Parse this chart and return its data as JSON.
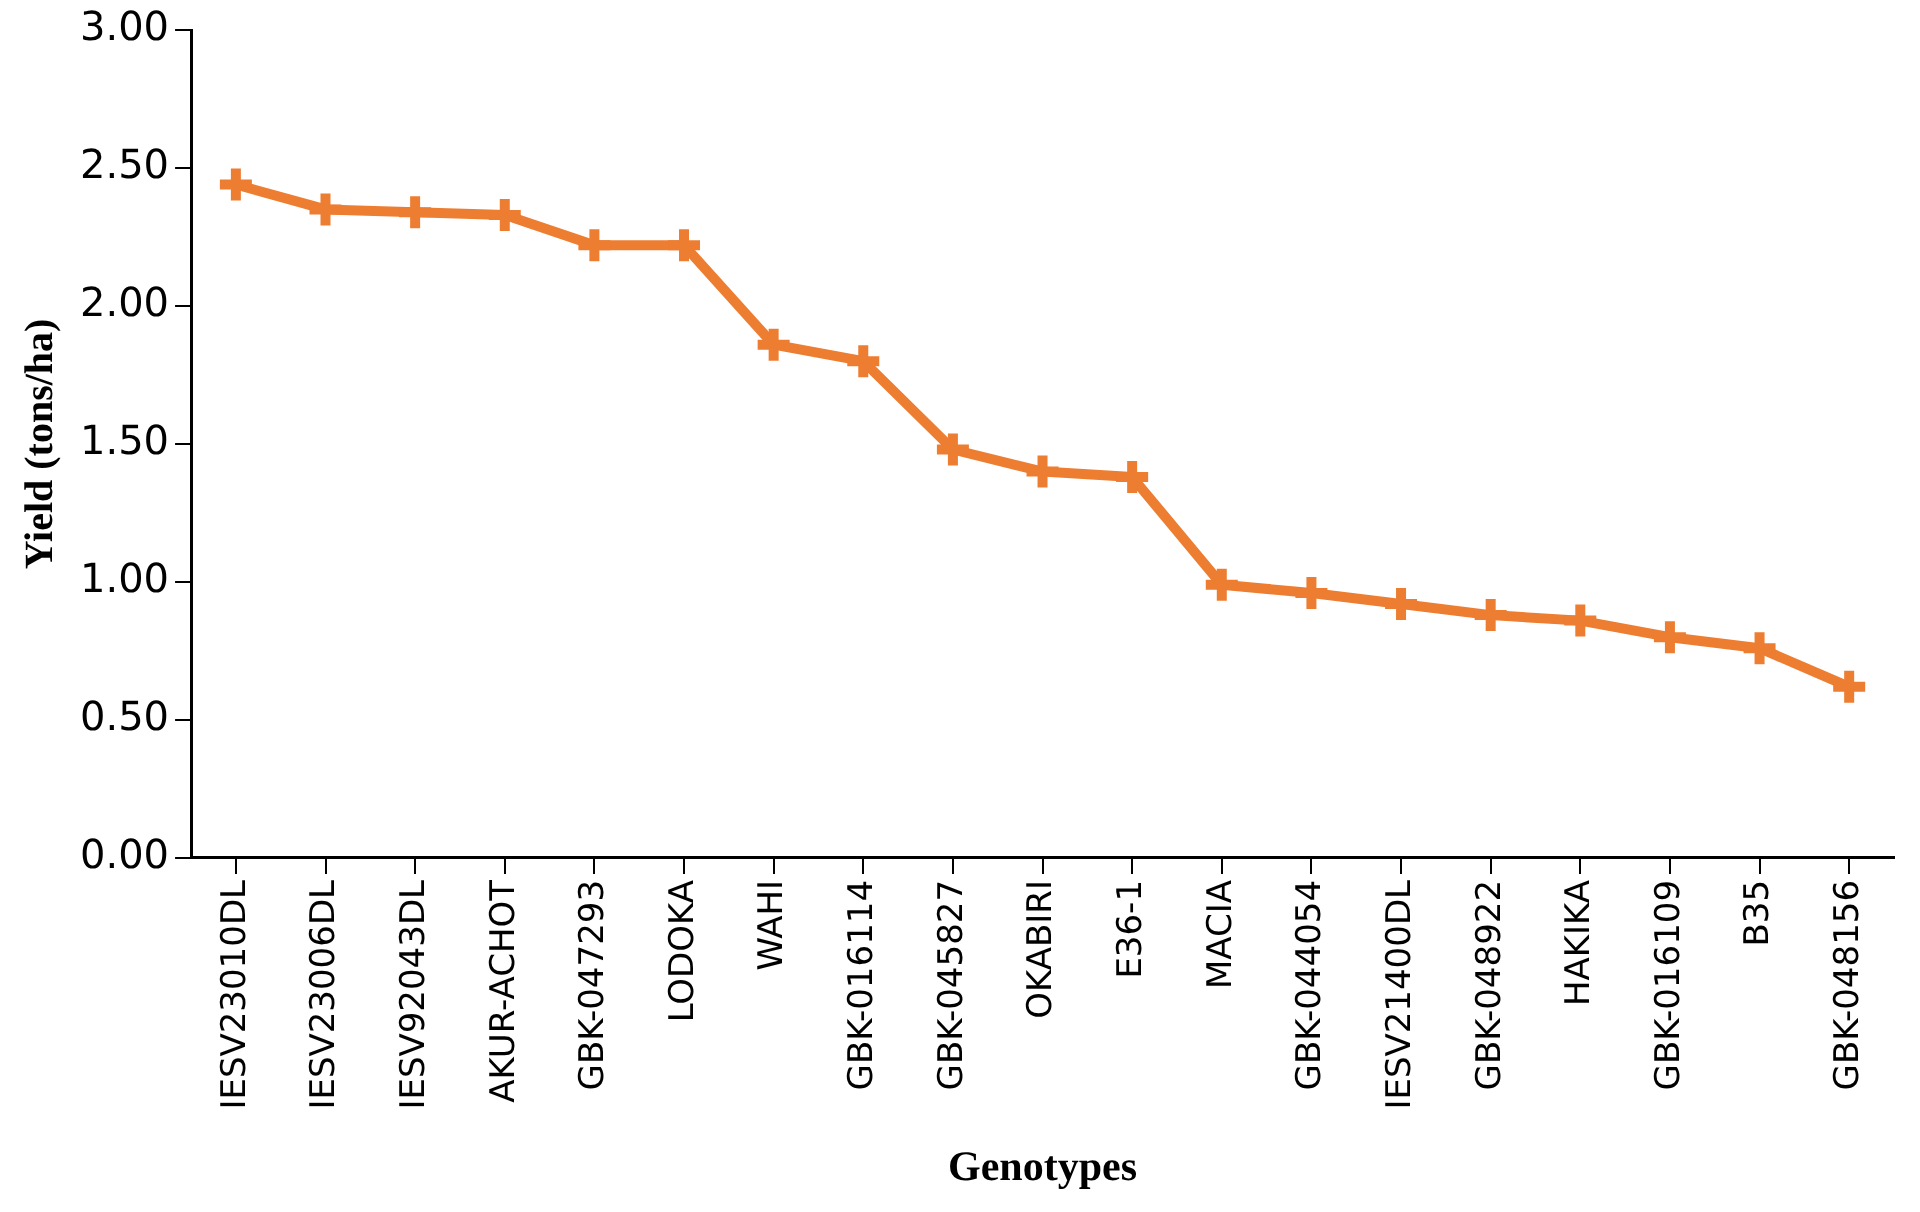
{
  "chart_data": {
    "type": "line",
    "xlabel": "Genotypes",
    "ylabel": "Yield (tons/ha)",
    "categories": [
      "IESV23010DL",
      "IESV23006DL",
      "IESV92043DL",
      "AKUR-ACHOT",
      "GBK-047293",
      "LODOKA",
      "WAHI",
      "GBK-016114",
      "GBK-045827",
      "OKABIRI",
      "E36-1",
      "MACIA",
      "GBK-044054",
      "IESV21400DL",
      "GBK-048922",
      "HAKIKA",
      "GBK-016109",
      "B35",
      "GBK-048156"
    ],
    "series": [
      {
        "color": "#ed7d31",
        "values": [
          2.44,
          2.35,
          2.34,
          2.33,
          2.22,
          2.22,
          1.86,
          1.8,
          1.48,
          1.4,
          1.38,
          0.99,
          0.96,
          0.92,
          0.88,
          0.86,
          0.8,
          0.76,
          0.62
        ]
      }
    ],
    "ylim": [
      0,
      3
    ],
    "yticks": [
      {
        "value": 0,
        "label": "0.00"
      },
      {
        "value": 0.5,
        "label": "0.50"
      },
      {
        "value": 1,
        "label": "1.00"
      },
      {
        "value": 1.5,
        "label": "1.50"
      },
      {
        "value": 2,
        "label": "2.00"
      },
      {
        "value": 2.5,
        "label": "2.50"
      },
      {
        "value": 3,
        "label": "3.00"
      }
    ],
    "grid": false,
    "legend": false,
    "marker": "cross",
    "line_style": "solid"
  }
}
